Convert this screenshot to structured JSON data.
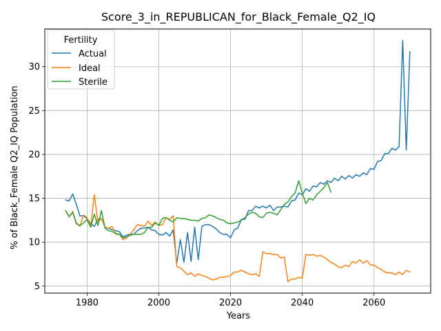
{
  "chart_data": {
    "type": "line",
    "title": "Score_3_in_REPUBLICAN_for_Black_Female_Q2_IQ",
    "xlabel": "Years",
    "ylabel": "% of Black_Female Q2_IQ Population",
    "xlim": [
      1968.2,
      2075.8
    ],
    "ylim": [
      4.2,
      34.3
    ],
    "xticks": [
      1980,
      2000,
      2020,
      2040,
      2060
    ],
    "yticks": [
      5,
      10,
      15,
      20,
      25,
      30
    ],
    "grid": true,
    "legend": {
      "title": "Fertility",
      "position": "top-left"
    },
    "colors": {
      "Actual": "#1f77b4",
      "Ideal": "#ff7f0e",
      "Sterile": "#2ca02c"
    },
    "series": [
      {
        "name": "Actual",
        "x": [
          1974,
          1975,
          1976,
          1977,
          1978,
          1979,
          1980,
          1981,
          1982,
          1983,
          1984,
          1985,
          1986,
          1987,
          1988,
          1989,
          1990,
          1991,
          1992,
          1993,
          1994,
          1995,
          1996,
          1997,
          1998,
          1999,
          2000,
          2001,
          2002,
          2003,
          2004,
          2005,
          2006,
          2007,
          2008,
          2009,
          2010,
          2011,
          2012,
          2013,
          2014,
          2015,
          2016,
          2017,
          2018,
          2019,
          2020,
          2021,
          2022,
          2023,
          2024,
          2025,
          2026,
          2027,
          2028,
          2029,
          2030,
          2031,
          2032,
          2033,
          2034,
          2035,
          2036,
          2037,
          2038,
          2039,
          2040,
          2041,
          2042,
          2043,
          2044,
          2045,
          2046,
          2047,
          2048,
          2049,
          2050,
          2051,
          2052,
          2053,
          2054,
          2055,
          2056,
          2057,
          2058,
          2059,
          2060,
          2061,
          2062,
          2063,
          2064,
          2065,
          2066,
          2067,
          2068,
          2069,
          2070
        ],
        "values": [
          14.8,
          14.7,
          15.5,
          14.3,
          13.0,
          13.0,
          12.7,
          12.1,
          11.8,
          12.6,
          12.7,
          11.7,
          11.6,
          11.4,
          11.3,
          11.2,
          10.6,
          10.8,
          10.9,
          10.9,
          11.3,
          11.6,
          11.6,
          11.7,
          11.4,
          11.3,
          10.9,
          10.8,
          11.1,
          10.7,
          11.4,
          7.6,
          10.3,
          7.7,
          11.1,
          7.8,
          11.7,
          8.0,
          11.8,
          12.0,
          12.0,
          11.8,
          11.5,
          11.1,
          10.9,
          10.9,
          10.5,
          11.4,
          11.6,
          12.6,
          12.6,
          13.6,
          13.6,
          14.1,
          13.9,
          14.1,
          13.9,
          14.2,
          13.6,
          14.0,
          14.0,
          14.1,
          14.0,
          14.7,
          14.8,
          15.6,
          15.4,
          16.1,
          15.8,
          16.4,
          16.3,
          16.8,
          16.6,
          17.0,
          16.8,
          17.3,
          17.0,
          17.5,
          17.2,
          17.6,
          17.3,
          17.7,
          17.5,
          17.9,
          17.7,
          18.4,
          18.3,
          19.2,
          19.3,
          20.1,
          20.1,
          20.7,
          20.5,
          20.9,
          33.0,
          20.5,
          31.7
        ]
      },
      {
        "name": "Ideal",
        "x": [
          1974,
          1975,
          1976,
          1977,
          1978,
          1979,
          1980,
          1981,
          1982,
          1983,
          1984,
          1985,
          1986,
          1987,
          1988,
          1989,
          1990,
          1991,
          1992,
          1993,
          1994,
          1995,
          1996,
          1997,
          1998,
          1999,
          2000,
          2001,
          2002,
          2003,
          2004,
          2005,
          2006,
          2007,
          2008,
          2009,
          2010,
          2011,
          2012,
          2013,
          2014,
          2015,
          2016,
          2017,
          2018,
          2019,
          2020,
          2021,
          2022,
          2023,
          2024,
          2025,
          2026,
          2027,
          2028,
          2029,
          2030,
          2031,
          2032,
          2033,
          2034,
          2035,
          2036,
          2037,
          2038,
          2039,
          2040,
          2041,
          2042,
          2043,
          2044,
          2045,
          2046,
          2047,
          2048,
          2049,
          2050,
          2051,
          2052,
          2053,
          2054,
          2055,
          2056,
          2057,
          2058,
          2059,
          2060,
          2061,
          2062,
          2063,
          2064,
          2065,
          2066,
          2067,
          2068,
          2069,
          2070
        ],
        "values": [
          13.6,
          12.9,
          13.5,
          12.2,
          11.8,
          13.1,
          12.8,
          11.8,
          15.4,
          12.3,
          12.7,
          11.7,
          11.6,
          11.8,
          10.9,
          10.9,
          10.3,
          10.5,
          10.9,
          11.4,
          12.0,
          11.9,
          11.8,
          12.4,
          11.9,
          12.3,
          11.9,
          12.0,
          12.8,
          12.6,
          13.0,
          7.2,
          7.1,
          6.7,
          6.3,
          6.5,
          6.1,
          6.4,
          6.2,
          6.1,
          5.9,
          5.7,
          5.8,
          6.0,
          6.0,
          6.1,
          6.2,
          6.6,
          6.6,
          6.8,
          6.6,
          6.4,
          6.3,
          6.4,
          6.1,
          8.9,
          8.7,
          8.7,
          8.6,
          8.6,
          8.2,
          8.3,
          5.5,
          5.8,
          5.8,
          6.0,
          5.9,
          8.6,
          8.5,
          8.6,
          8.4,
          8.5,
          8.3,
          8.0,
          7.7,
          7.5,
          7.2,
          7.1,
          7.4,
          7.2,
          7.8,
          7.6,
          8.0,
          7.6,
          7.9,
          7.4,
          7.4,
          7.1,
          6.9,
          6.6,
          6.5,
          6.5,
          6.3,
          6.6,
          6.3,
          6.8,
          6.6
        ]
      },
      {
        "name": "Sterile",
        "x": [
          1974,
          1975,
          1976,
          1977,
          1978,
          1979,
          1980,
          1981,
          1982,
          1983,
          1984,
          1985,
          1986,
          1987,
          1988,
          1989,
          1990,
          1991,
          1992,
          1993,
          1994,
          1995,
          1996,
          1997,
          1998,
          1999,
          2000,
          2001,
          2002,
          2003,
          2004,
          2005,
          2006,
          2007,
          2008,
          2009,
          2010,
          2011,
          2012,
          2013,
          2014,
          2015,
          2016,
          2017,
          2018,
          2019,
          2020,
          2021,
          2022,
          2023,
          2024,
          2025,
          2026,
          2027,
          2028,
          2029,
          2030,
          2031,
          2032,
          2033,
          2034,
          2035,
          2036,
          2037,
          2038,
          2039,
          2040,
          2041,
          2042,
          2043,
          2044,
          2045,
          2046,
          2047,
          2048
        ],
        "values": [
          13.6,
          12.9,
          13.4,
          12.1,
          11.9,
          12.2,
          12.6,
          11.7,
          13.2,
          11.9,
          13.6,
          11.6,
          11.3,
          11.2,
          11.0,
          10.9,
          10.5,
          10.6,
          10.8,
          10.9,
          10.9,
          10.9,
          11.1,
          11.7,
          11.7,
          12.2,
          11.9,
          12.7,
          12.8,
          12.5,
          12.3,
          12.8,
          12.7,
          12.7,
          12.6,
          12.5,
          12.5,
          12.4,
          12.7,
          12.8,
          13.1,
          13.0,
          12.8,
          12.6,
          12.5,
          12.2,
          12.1,
          12.2,
          12.3,
          12.5,
          12.8,
          13.2,
          13.4,
          13.3,
          12.9,
          12.8,
          13.3,
          13.4,
          13.3,
          13.1,
          13.7,
          14.3,
          14.6,
          15.2,
          15.6,
          17.0,
          15.6,
          14.4,
          15.0,
          14.8,
          15.4,
          15.8,
          16.2,
          16.8,
          15.7
        ]
      }
    ]
  }
}
